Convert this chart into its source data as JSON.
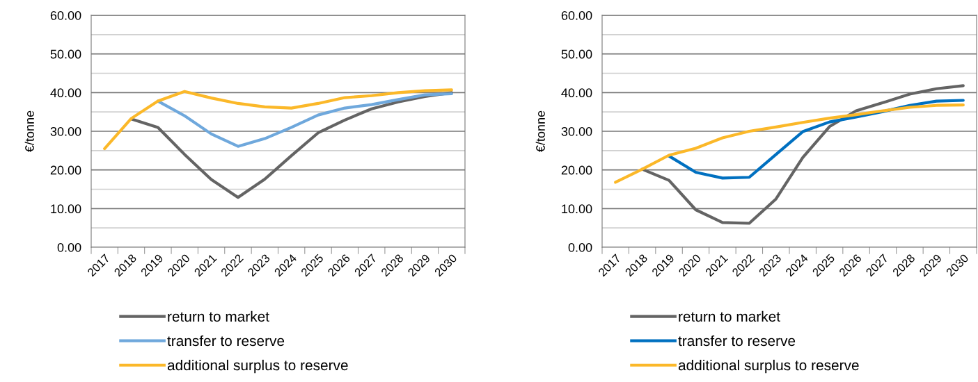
{
  "chart_data": [
    {
      "type": "line",
      "ylabel": "€/tonne",
      "categories": [
        "2017",
        "2018",
        "2019",
        "2020",
        "2021",
        "2022",
        "2023",
        "2024",
        "2025",
        "2026",
        "2027",
        "2028",
        "2029",
        "2030"
      ],
      "series": [
        {
          "name": "return to market",
          "color": "#646464",
          "values": [
            null,
            33.2,
            31.0,
            24.0,
            17.5,
            12.9,
            17.6,
            23.7,
            29.6,
            32.9,
            35.8,
            37.6,
            39.0,
            40.0
          ]
        },
        {
          "name": "transfer to reserve",
          "color": "#6fa8dc",
          "values": [
            null,
            null,
            37.8,
            34.0,
            29.3,
            26.1,
            28.1,
            31.0,
            34.2,
            36.0,
            36.9,
            38.2,
            39.4,
            39.7
          ]
        },
        {
          "name": "additional surplus to reserve",
          "color": "#fbb829",
          "values": [
            25.5,
            33.3,
            37.8,
            40.3,
            38.6,
            37.2,
            36.3,
            36.0,
            37.2,
            38.7,
            39.2,
            40.0,
            40.5,
            40.7
          ]
        }
      ],
      "ylim": [
        0,
        60
      ],
      "yticks": [
        {
          "value": 0,
          "label": "0.00"
        },
        {
          "value": 5,
          "label": null
        },
        {
          "value": 10,
          "label": "10.00"
        },
        {
          "value": 15,
          "label": null
        },
        {
          "value": 20,
          "label": "20.00"
        },
        {
          "value": 25,
          "label": null
        },
        {
          "value": 30,
          "label": "30.00"
        },
        {
          "value": 35,
          "label": null
        },
        {
          "value": 40,
          "label": "40.00"
        },
        {
          "value": 45,
          "label": null
        },
        {
          "value": 50,
          "label": "50.00"
        },
        {
          "value": 55,
          "label": null
        },
        {
          "value": 60,
          "label": "60.00"
        }
      ],
      "grid": "y",
      "legend": "bottom",
      "marker": "none",
      "line_style": "solid"
    },
    {
      "type": "line",
      "ylabel": "€/tonne",
      "categories": [
        "2017",
        "2018",
        "2019",
        "2020",
        "2021",
        "2022",
        "2023",
        "2024",
        "2025",
        "2026",
        "2027",
        "2028",
        "2029",
        "2030"
      ],
      "series": [
        {
          "name": "return to market",
          "color": "#646464",
          "values": [
            null,
            20.2,
            17.3,
            9.7,
            6.4,
            6.2,
            12.5,
            23.2,
            31.2,
            35.3,
            37.4,
            39.6,
            41.0,
            41.8
          ]
        },
        {
          "name": "transfer to reserve",
          "color": "#0070c0",
          "values": [
            null,
            null,
            23.6,
            19.4,
            17.9,
            18.1,
            24.0,
            29.9,
            32.4,
            33.7,
            35.1,
            36.7,
            37.8,
            38.0
          ]
        },
        {
          "name": "additional surplus to reserve",
          "color": "#fbb829",
          "values": [
            16.8,
            20.2,
            23.8,
            25.6,
            28.3,
            30.0,
            31.1,
            32.3,
            33.4,
            34.3,
            35.3,
            36.2,
            36.7,
            36.8
          ]
        }
      ],
      "ylim": [
        0,
        60
      ],
      "yticks": [
        {
          "value": 0,
          "label": "0.00"
        },
        {
          "value": 5,
          "label": null
        },
        {
          "value": 10,
          "label": "10.00"
        },
        {
          "value": 15,
          "label": null
        },
        {
          "value": 20,
          "label": "20.00"
        },
        {
          "value": 25,
          "label": null
        },
        {
          "value": 30,
          "label": "30.00"
        },
        {
          "value": 35,
          "label": null
        },
        {
          "value": 40,
          "label": "40.00"
        },
        {
          "value": 45,
          "label": null
        },
        {
          "value": 50,
          "label": "50.00"
        },
        {
          "value": 55,
          "label": null
        },
        {
          "value": 60,
          "label": "60.00"
        }
      ],
      "grid": "y",
      "legend": "bottom",
      "marker": "none",
      "line_style": "solid"
    }
  ]
}
